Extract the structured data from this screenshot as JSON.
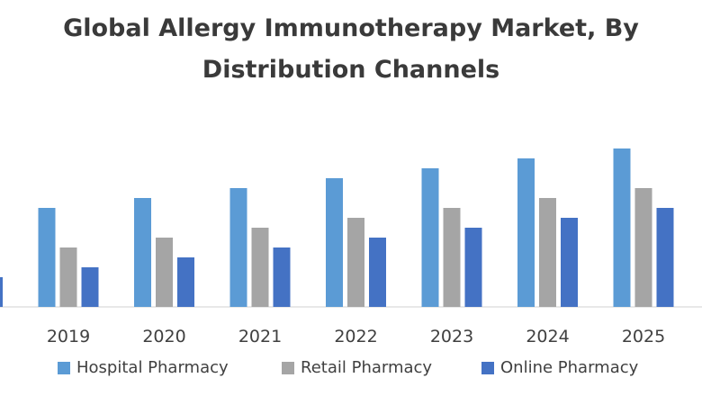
{
  "chart_data": {
    "type": "bar",
    "title": "Global Allergy Immunotherapy Market, By",
    "subtitle": "Distribution Channels",
    "xlabel": "",
    "ylabel": "",
    "categories": [
      "2019",
      "2020",
      "2021",
      "2022",
      "2023",
      "2024",
      "2025"
    ],
    "ylim": [
      0,
      18
    ],
    "grid": false,
    "legend_position": "bottom",
    "series": [
      {
        "name": "Hospital Pharmacy",
        "color": "#5b9bd5",
        "values": [
          10,
          11,
          12,
          13,
          14,
          15,
          16
        ]
      },
      {
        "name": "Retail Pharmacy",
        "color": "#a5a5a5",
        "values": [
          6,
          7,
          8,
          9,
          10,
          11,
          12
        ]
      },
      {
        "name": "Online Pharmacy",
        "color": "#4472c4",
        "values": [
          4,
          5,
          6,
          7,
          8,
          9,
          10
        ]
      }
    ]
  }
}
